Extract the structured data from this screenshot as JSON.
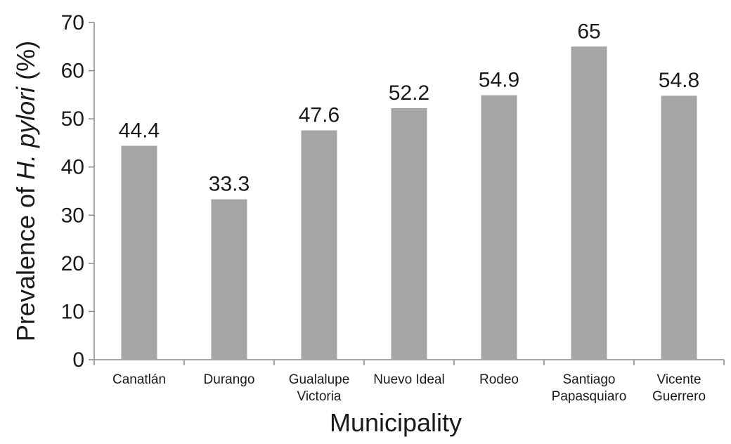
{
  "chart_data": {
    "type": "bar",
    "categories": [
      [
        "Canatlán"
      ],
      [
        "Durango"
      ],
      [
        "Gualalupe",
        "Victoria"
      ],
      [
        "Nuevo Ideal"
      ],
      [
        "Rodeo"
      ],
      [
        "Santiago",
        "Papasquiaro"
      ],
      [
        "Vicente",
        "Guerrero"
      ]
    ],
    "values": [
      44.4,
      33.3,
      47.6,
      52.2,
      54.9,
      65,
      54.8
    ],
    "data_labels": [
      "44.4",
      "33.3",
      "47.6",
      "52.2",
      "54.9",
      "65",
      "54.8"
    ],
    "ylim": [
      0,
      70
    ],
    "yticks": [
      0,
      10,
      20,
      30,
      40,
      50,
      60,
      70
    ],
    "xlabel": "Municipality",
    "ylabel": {
      "prefix": "Prevalence of ",
      "italic": "H. pylori",
      "suffix": " (%)"
    },
    "bar_color": "#a6a6a6",
    "axis_color": "#888888",
    "grid": false
  }
}
